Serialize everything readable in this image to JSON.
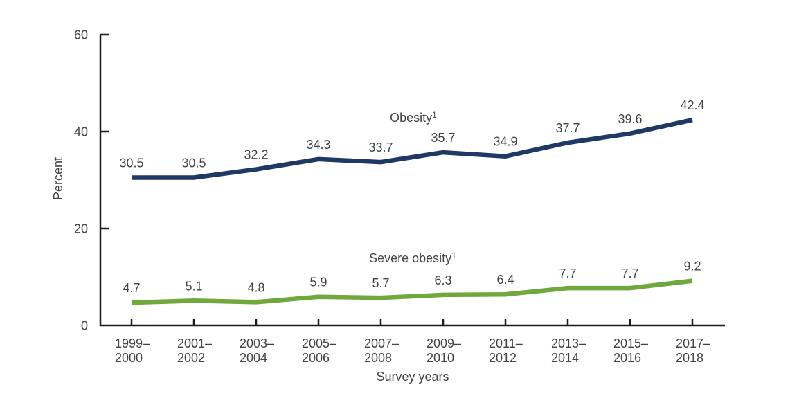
{
  "chart_data": {
    "type": "line",
    "xlabel": "Survey years",
    "ylabel": "Percent",
    "ylim": [
      0,
      60
    ],
    "yticks": [
      0,
      20,
      40,
      60
    ],
    "categories": [
      [
        "1999–",
        "2000"
      ],
      [
        "2001–",
        "2002"
      ],
      [
        "2003–",
        "2004"
      ],
      [
        "2005–",
        "2006"
      ],
      [
        "2007–",
        "2008"
      ],
      [
        "2009–",
        "2010"
      ],
      [
        "2011–",
        "2012"
      ],
      [
        "2013–",
        "2014"
      ],
      [
        "2015–",
        "2016"
      ],
      [
        "2017–",
        "2018"
      ]
    ],
    "series": [
      {
        "name": "Obesity",
        "superscript": "1",
        "color": "#1f3864",
        "values": [
          30.5,
          30.5,
          32.2,
          34.3,
          33.7,
          35.7,
          34.9,
          37.7,
          39.6,
          42.4
        ]
      },
      {
        "name": "Severe obesity",
        "superscript": "1",
        "color": "#70a83e",
        "values": [
          4.7,
          5.1,
          4.8,
          5.9,
          5.7,
          6.3,
          6.4,
          7.7,
          7.7,
          9.2
        ]
      }
    ],
    "data_labels": true,
    "grid": false,
    "legend_position": "inline-above-lines",
    "text_color": "#404347",
    "axis_color": "#1a1a1a"
  }
}
